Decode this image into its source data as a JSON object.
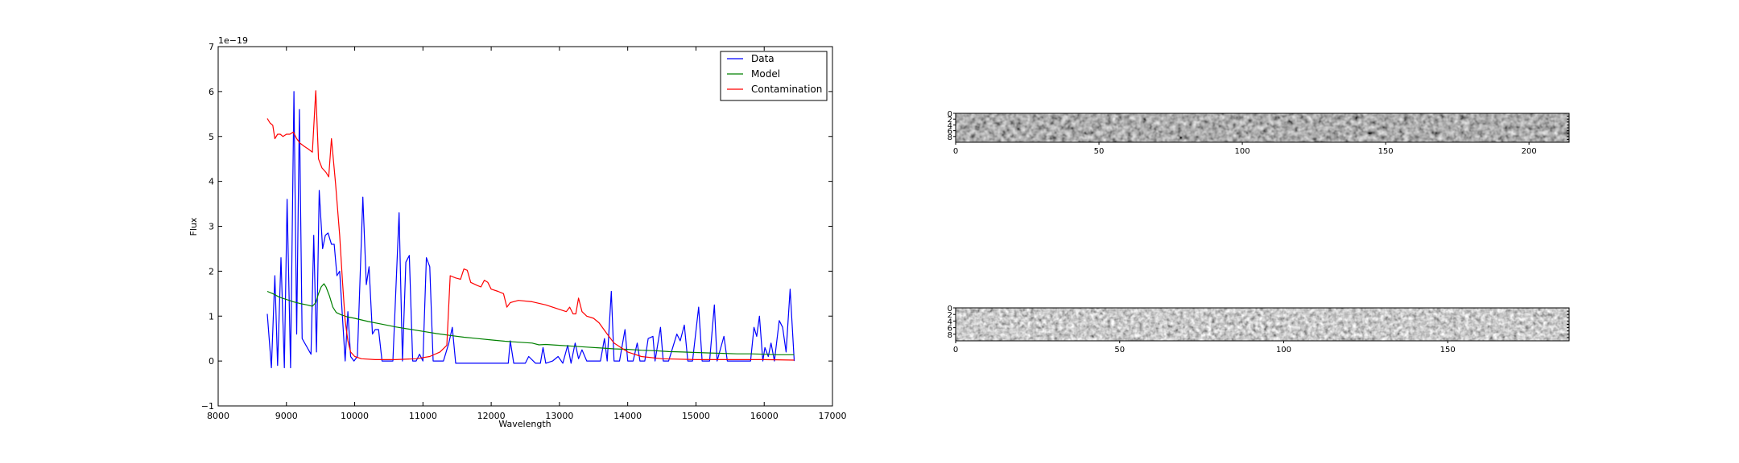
{
  "chart_data": [
    {
      "type": "line",
      "xlabel": "Wavelength",
      "ylabel": "Flux",
      "offset_text": "1e−19",
      "xlim": [
        8000,
        17000
      ],
      "ylim": [
        -1,
        7
      ],
      "xticks": [
        8000,
        9000,
        10000,
        11000,
        12000,
        13000,
        14000,
        15000,
        16000,
        17000
      ],
      "xtick_labels": [
        "8000",
        "9000",
        "10000",
        "11000",
        "12000",
        "13000",
        "14000",
        "15000",
        "16000",
        "17000"
      ],
      "yticks": [
        -1,
        0,
        1,
        2,
        3,
        4,
        5,
        6,
        7
      ],
      "ytick_labels": [
        "−1",
        "0",
        "1",
        "2",
        "3",
        "4",
        "5",
        "6",
        "7"
      ],
      "grid": false,
      "legend_position": "top-right",
      "series": [
        {
          "name": "Data",
          "color": "#0000ff",
          "points": [
            [
              8720,
              1.05
            ],
            [
              8780,
              -0.15
            ],
            [
              8830,
              1.9
            ],
            [
              8870,
              -0.1
            ],
            [
              8920,
              2.3
            ],
            [
              8970,
              -0.15
            ],
            [
              9010,
              3.6
            ],
            [
              9060,
              -0.15
            ],
            [
              9110,
              6.0
            ],
            [
              9150,
              0.6
            ],
            [
              9190,
              5.6
            ],
            [
              9230,
              0.5
            ],
            [
              9360,
              0.15
            ],
            [
              9400,
              2.8
            ],
            [
              9440,
              0.2
            ],
            [
              9480,
              3.8
            ],
            [
              9530,
              2.5
            ],
            [
              9570,
              2.8
            ],
            [
              9610,
              2.85
            ],
            [
              9660,
              2.6
            ],
            [
              9700,
              2.6
            ],
            [
              9740,
              1.9
            ],
            [
              9780,
              2.0
            ],
            [
              9820,
              1.0
            ],
            [
              9860,
              0.0
            ],
            [
              9900,
              1.1
            ],
            [
              9940,
              0.1
            ],
            [
              9990,
              0.0
            ],
            [
              10040,
              0.1
            ],
            [
              10120,
              3.65
            ],
            [
              10170,
              1.7
            ],
            [
              10210,
              2.1
            ],
            [
              10260,
              0.6
            ],
            [
              10300,
              0.7
            ],
            [
              10350,
              0.7
            ],
            [
              10400,
              0.0
            ],
            [
              10450,
              0.0
            ],
            [
              10560,
              0.0
            ],
            [
              10650,
              3.3
            ],
            [
              10700,
              0.0
            ],
            [
              10750,
              2.2
            ],
            [
              10800,
              2.35
            ],
            [
              10850,
              0.0
            ],
            [
              10900,
              0.0
            ],
            [
              10950,
              0.15
            ],
            [
              11000,
              0.0
            ],
            [
              11050,
              2.3
            ],
            [
              11100,
              2.1
            ],
            [
              11150,
              0.0
            ],
            [
              11200,
              0.0
            ],
            [
              11300,
              0.0
            ],
            [
              11380,
              0.4
            ],
            [
              11430,
              0.75
            ],
            [
              11480,
              -0.05
            ],
            [
              11600,
              -0.05
            ],
            [
              11800,
              -0.05
            ],
            [
              12000,
              -0.05
            ],
            [
              12250,
              -0.05
            ],
            [
              12280,
              0.45
            ],
            [
              12330,
              -0.05
            ],
            [
              12500,
              -0.05
            ],
            [
              12550,
              0.1
            ],
            [
              12650,
              -0.05
            ],
            [
              12720,
              -0.05
            ],
            [
              12760,
              0.3
            ],
            [
              12800,
              -0.05
            ],
            [
              12900,
              0.0
            ],
            [
              12980,
              0.1
            ],
            [
              13050,
              -0.05
            ],
            [
              13120,
              0.35
            ],
            [
              13170,
              -0.05
            ],
            [
              13230,
              0.4
            ],
            [
              13280,
              0.05
            ],
            [
              13330,
              0.25
            ],
            [
              13400,
              0.0
            ],
            [
              13500,
              0.0
            ],
            [
              13600,
              0.0
            ],
            [
              13660,
              0.5
            ],
            [
              13700,
              0.0
            ],
            [
              13760,
              1.55
            ],
            [
              13800,
              0.0
            ],
            [
              13880,
              0.0
            ],
            [
              13960,
              0.7
            ],
            [
              14000,
              0.0
            ],
            [
              14080,
              0.0
            ],
            [
              14140,
              0.4
            ],
            [
              14180,
              0.0
            ],
            [
              14250,
              0.0
            ],
            [
              14300,
              0.5
            ],
            [
              14370,
              0.55
            ],
            [
              14400,
              0.0
            ],
            [
              14480,
              0.75
            ],
            [
              14520,
              0.0
            ],
            [
              14600,
              0.0
            ],
            [
              14640,
              0.2
            ],
            [
              14720,
              0.6
            ],
            [
              14770,
              0.45
            ],
            [
              14830,
              0.8
            ],
            [
              14880,
              0.0
            ],
            [
              14950,
              0.0
            ],
            [
              15040,
              1.2
            ],
            [
              15090,
              0.0
            ],
            [
              15200,
              0.0
            ],
            [
              15270,
              1.25
            ],
            [
              15310,
              0.0
            ],
            [
              15410,
              0.55
            ],
            [
              15460,
              0.0
            ],
            [
              15550,
              0.0
            ],
            [
              15700,
              0.0
            ],
            [
              15800,
              0.0
            ],
            [
              15850,
              0.75
            ],
            [
              15890,
              0.55
            ],
            [
              15930,
              1.0
            ],
            [
              15980,
              0.0
            ],
            [
              16010,
              0.3
            ],
            [
              16060,
              0.1
            ],
            [
              16100,
              0.4
            ],
            [
              16150,
              0.0
            ],
            [
              16220,
              0.9
            ],
            [
              16270,
              0.75
            ],
            [
              16320,
              0.2
            ],
            [
              16380,
              1.6
            ],
            [
              16440,
              0.0
            ]
          ]
        },
        {
          "name": "Model",
          "color": "#008000",
          "points": [
            [
              8720,
              1.55
            ],
            [
              8800,
              1.5
            ],
            [
              8900,
              1.42
            ],
            [
              9000,
              1.37
            ],
            [
              9100,
              1.32
            ],
            [
              9200,
              1.28
            ],
            [
              9300,
              1.25
            ],
            [
              9380,
              1.22
            ],
            [
              9430,
              1.3
            ],
            [
              9470,
              1.5
            ],
            [
              9510,
              1.65
            ],
            [
              9550,
              1.72
            ],
            [
              9580,
              1.65
            ],
            [
              9630,
              1.45
            ],
            [
              9680,
              1.2
            ],
            [
              9730,
              1.08
            ],
            [
              9800,
              1.03
            ],
            [
              9900,
              0.98
            ],
            [
              10000,
              0.95
            ],
            [
              10200,
              0.88
            ],
            [
              10400,
              0.82
            ],
            [
              10600,
              0.76
            ],
            [
              10800,
              0.71
            ],
            [
              11000,
              0.66
            ],
            [
              11200,
              0.61
            ],
            [
              11400,
              0.57
            ],
            [
              11600,
              0.53
            ],
            [
              11800,
              0.5
            ],
            [
              12000,
              0.47
            ],
            [
              12200,
              0.44
            ],
            [
              12400,
              0.42
            ],
            [
              12600,
              0.4
            ],
            [
              12700,
              0.36
            ],
            [
              12800,
              0.37
            ],
            [
              13000,
              0.35
            ],
            [
              13200,
              0.33
            ],
            [
              13400,
              0.31
            ],
            [
              13600,
              0.29
            ],
            [
              13800,
              0.27
            ],
            [
              14000,
              0.26
            ],
            [
              14200,
              0.24
            ],
            [
              14400,
              0.23
            ],
            [
              14600,
              0.21
            ],
            [
              14800,
              0.2
            ],
            [
              15000,
              0.19
            ],
            [
              15200,
              0.18
            ],
            [
              15400,
              0.17
            ],
            [
              15600,
              0.16
            ],
            [
              15800,
              0.16
            ],
            [
              16000,
              0.15
            ],
            [
              16200,
              0.14
            ],
            [
              16440,
              0.14
            ]
          ]
        },
        {
          "name": "Contamination",
          "color": "#ff0000",
          "points": [
            [
              8720,
              5.4
            ],
            [
              8760,
              5.3
            ],
            [
              8800,
              5.25
            ],
            [
              8830,
              4.95
            ],
            [
              8870,
              5.05
            ],
            [
              8910,
              5.05
            ],
            [
              8950,
              5.0
            ],
            [
              9000,
              5.05
            ],
            [
              9050,
              5.05
            ],
            [
              9100,
              5.1
            ],
            [
              9150,
              4.95
            ],
            [
              9200,
              4.85
            ],
            [
              9260,
              4.78
            ],
            [
              9320,
              4.72
            ],
            [
              9380,
              4.65
            ],
            [
              9430,
              6.02
            ],
            [
              9470,
              4.5
            ],
            [
              9520,
              4.3
            ],
            [
              9580,
              4.2
            ],
            [
              9620,
              4.1
            ],
            [
              9660,
              4.95
            ],
            [
              9720,
              3.95
            ],
            [
              9780,
              2.8
            ],
            [
              9820,
              1.8
            ],
            [
              9860,
              0.9
            ],
            [
              9900,
              0.45
            ],
            [
              9940,
              0.2
            ],
            [
              10000,
              0.1
            ],
            [
              10100,
              0.05
            ],
            [
              10300,
              0.03
            ],
            [
              10600,
              0.03
            ],
            [
              10900,
              0.05
            ],
            [
              11100,
              0.1
            ],
            [
              11250,
              0.2
            ],
            [
              11350,
              0.35
            ],
            [
              11400,
              1.9
            ],
            [
              11480,
              1.85
            ],
            [
              11550,
              1.82
            ],
            [
              11600,
              2.05
            ],
            [
              11650,
              2.02
            ],
            [
              11700,
              1.75
            ],
            [
              11800,
              1.68
            ],
            [
              11850,
              1.65
            ],
            [
              11900,
              1.8
            ],
            [
              11950,
              1.75
            ],
            [
              12000,
              1.6
            ],
            [
              12100,
              1.55
            ],
            [
              12180,
              1.5
            ],
            [
              12230,
              1.2
            ],
            [
              12280,
              1.3
            ],
            [
              12400,
              1.35
            ],
            [
              12600,
              1.32
            ],
            [
              12800,
              1.25
            ],
            [
              13000,
              1.15
            ],
            [
              13100,
              1.1
            ],
            [
              13150,
              1.2
            ],
            [
              13200,
              1.05
            ],
            [
              13240,
              1.05
            ],
            [
              13280,
              1.4
            ],
            [
              13330,
              1.1
            ],
            [
              13400,
              1.0
            ],
            [
              13500,
              0.95
            ],
            [
              13580,
              0.85
            ],
            [
              13700,
              0.6
            ],
            [
              13800,
              0.4
            ],
            [
              13900,
              0.3
            ],
            [
              14000,
              0.2
            ],
            [
              14200,
              0.1
            ],
            [
              14500,
              0.05
            ],
            [
              15000,
              0.03
            ],
            [
              15500,
              0.03
            ],
            [
              16000,
              0.03
            ],
            [
              16440,
              0.02
            ]
          ]
        }
      ]
    },
    {
      "type": "heatmap",
      "colormap": "gray",
      "xlim": [
        0,
        214
      ],
      "ylim": [
        0,
        10
      ],
      "xtick_labels": [
        "0",
        "50",
        "100",
        "150",
        "200"
      ],
      "ytick_labels": [
        "0",
        "2",
        "4",
        "6",
        "8"
      ]
    },
    {
      "type": "heatmap",
      "colormap": "gray",
      "xlim": [
        0,
        187
      ],
      "ylim": [
        0,
        10
      ],
      "xtick_labels": [
        "0",
        "50",
        "100",
        "150"
      ],
      "ytick_labels": [
        "0",
        "2",
        "4",
        "6",
        "8"
      ]
    }
  ]
}
